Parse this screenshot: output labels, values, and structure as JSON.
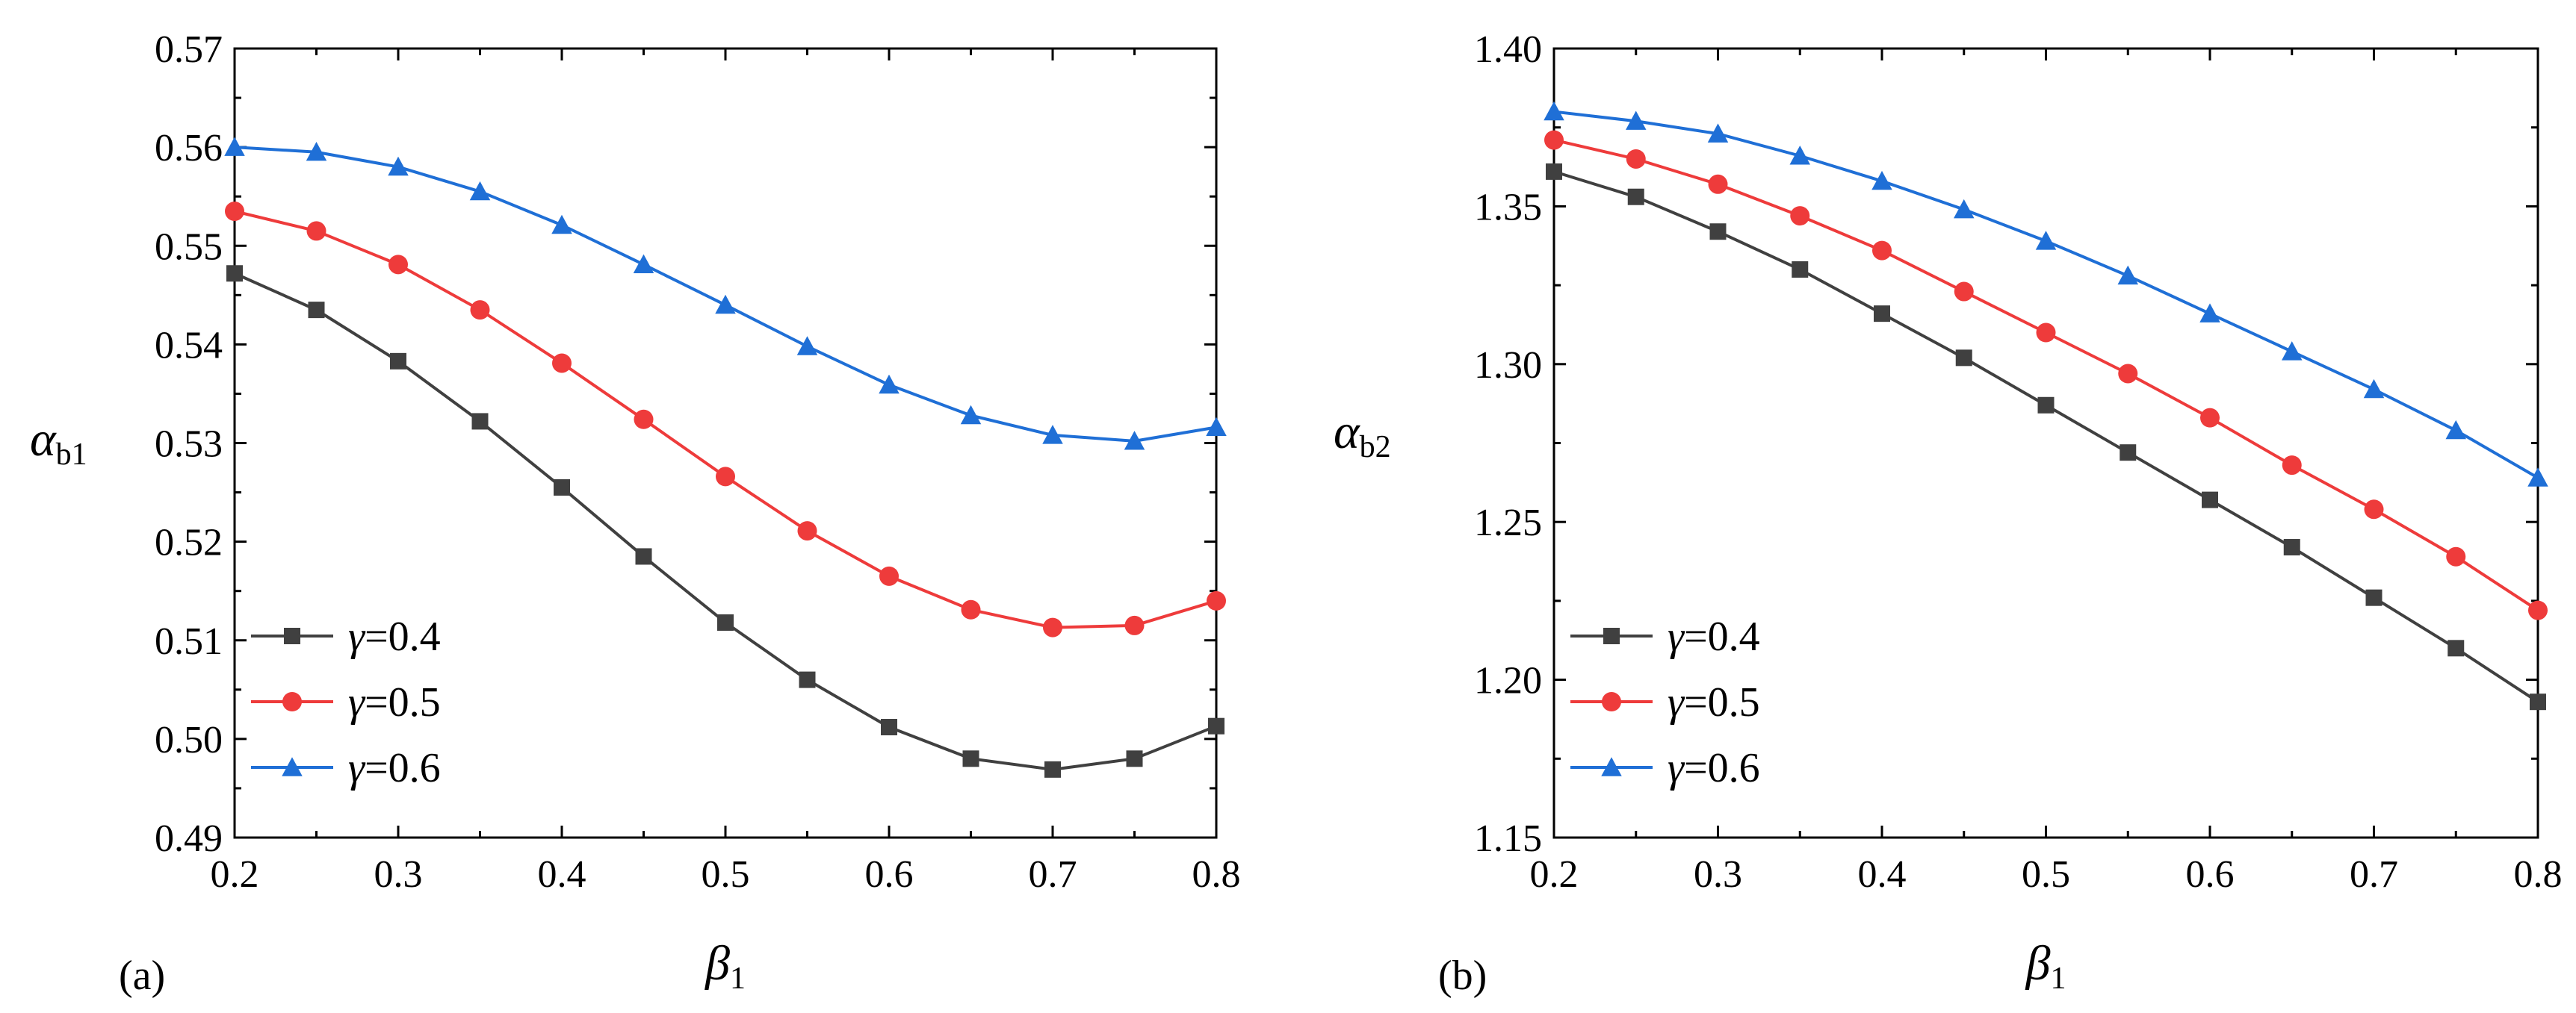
{
  "chart_data": [
    {
      "type": "line",
      "panel_label": "(a)",
      "xlabel": {
        "symbol": "β",
        "subscript": "1"
      },
      "ylabel": {
        "symbol": "α",
        "subscript": "b1"
      },
      "xlim": [
        0.2,
        0.8
      ],
      "ylim": [
        0.49,
        0.57
      ],
      "xticks": [
        "0.2",
        "0.3",
        "0.4",
        "0.5",
        "0.6",
        "0.7",
        "0.8"
      ],
      "yticks": [
        "0.49",
        "0.50",
        "0.51",
        "0.52",
        "0.53",
        "0.54",
        "0.55",
        "0.56",
        "0.57"
      ],
      "x": [
        0.2,
        0.25,
        0.3,
        0.35,
        0.4,
        0.45,
        0.5,
        0.55,
        0.6,
        0.65,
        0.7,
        0.75,
        0.8
      ],
      "legend_position": "bottom-left",
      "series": [
        {
          "name": "γ=0.4",
          "symbol": "γ",
          "value_text": "=0.4",
          "color": "#404040",
          "marker": "square",
          "values": [
            0.5472,
            0.5435,
            0.5383,
            0.5322,
            0.5255,
            0.5185,
            0.5118,
            0.506,
            0.5012,
            0.498,
            0.4969,
            0.498,
            0.5013
          ]
        },
        {
          "name": "γ=0.5",
          "symbol": "γ",
          "value_text": "=0.5",
          "color": "#ee3b3b",
          "marker": "circle",
          "values": [
            0.5535,
            0.5515,
            0.5481,
            0.5435,
            0.5381,
            0.5324,
            0.5266,
            0.5211,
            0.5165,
            0.5131,
            0.5113,
            0.5115,
            0.514
          ]
        },
        {
          "name": "γ=0.6",
          "symbol": "γ",
          "value_text": "=0.6",
          "color": "#1f6fd6",
          "marker": "triangle",
          "values": [
            0.56,
            0.5595,
            0.558,
            0.5555,
            0.5521,
            0.5481,
            0.544,
            0.5398,
            0.5359,
            0.5328,
            0.5308,
            0.5302,
            0.5316
          ]
        }
      ]
    },
    {
      "type": "line",
      "panel_label": "(b)",
      "xlabel": {
        "symbol": "β",
        "subscript": "1"
      },
      "ylabel": {
        "symbol": "α",
        "subscript": "b2"
      },
      "xlim": [
        0.2,
        0.8
      ],
      "ylim": [
        1.15,
        1.4
      ],
      "xticks": [
        "0.2",
        "0.3",
        "0.4",
        "0.5",
        "0.6",
        "0.7",
        "0.8"
      ],
      "yticks": [
        "1.15",
        "1.20",
        "1.25",
        "1.30",
        "1.35",
        "1.40"
      ],
      "x": [
        0.2,
        0.25,
        0.3,
        0.35,
        0.4,
        0.45,
        0.5,
        0.55,
        0.6,
        0.65,
        0.7,
        0.75,
        0.8
      ],
      "legend_position": "bottom-left",
      "series": [
        {
          "name": "γ=0.4",
          "symbol": "γ",
          "value_text": "=0.4",
          "color": "#404040",
          "marker": "square",
          "values": [
            1.361,
            1.353,
            1.342,
            1.33,
            1.316,
            1.302,
            1.287,
            1.272,
            1.257,
            1.242,
            1.226,
            1.21,
            1.193
          ]
        },
        {
          "name": "γ=0.5",
          "symbol": "γ",
          "value_text": "=0.5",
          "color": "#ee3b3b",
          "marker": "circle",
          "values": [
            1.371,
            1.365,
            1.357,
            1.347,
            1.336,
            1.323,
            1.31,
            1.297,
            1.283,
            1.268,
            1.254,
            1.239,
            1.222
          ]
        },
        {
          "name": "γ=0.6",
          "symbol": "γ",
          "value_text": "=0.6",
          "color": "#1f6fd6",
          "marker": "triangle",
          "values": [
            1.38,
            1.377,
            1.373,
            1.366,
            1.358,
            1.349,
            1.339,
            1.328,
            1.316,
            1.304,
            1.292,
            1.279,
            1.264
          ]
        }
      ]
    }
  ]
}
